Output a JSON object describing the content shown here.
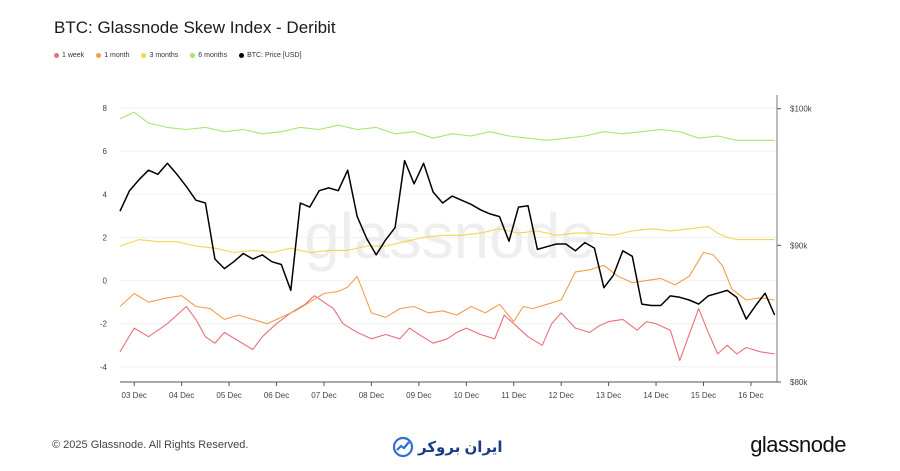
{
  "header": {
    "title": "BTC: Glassnode Skew Index - Deribit"
  },
  "legend": [
    {
      "label": "1 week",
      "color": "#e8707b"
    },
    {
      "label": "1 month",
      "color": "#ef9f4f"
    },
    {
      "label": "3 months",
      "color": "#f2d64d"
    },
    {
      "label": "6 months",
      "color": "#a7e66e"
    },
    {
      "label": "BTC: Price [USD]",
      "color": "#000000"
    }
  ],
  "footer": {
    "copyright": "© 2025 Glassnode. All Rights Reserved.",
    "partner_logo": "ایران بروکر",
    "brand": "glassnode"
  },
  "watermark": "glassnode",
  "chart_data": {
    "type": "line",
    "title": "BTC: Glassnode Skew Index - Deribit",
    "x_labels": [
      "03 Dec",
      "04 Dec",
      "05 Dec",
      "06 Dec",
      "07 Dec",
      "08 Dec",
      "09 Dec",
      "10 Dec",
      "11 Dec",
      "12 Dec",
      "13 Dec",
      "14 Dec",
      "15 Dec",
      "16 Dec"
    ],
    "x_range_days": [
      0,
      13.85
    ],
    "y_left": {
      "ticks": [
        "8",
        "6",
        "4",
        "2",
        "0",
        "-2",
        "-4"
      ],
      "ylim": [
        -4.7,
        8.6
      ]
    },
    "y_right": {
      "ticks": [
        "$100k",
        "$90k",
        "$80k"
      ],
      "ylim": [
        80000,
        101000
      ]
    },
    "series": [
      {
        "name": "1 week",
        "axis": "left",
        "color": "#e8707b",
        "x": [
          0,
          0.3,
          0.6,
          1.0,
          1.4,
          1.6,
          1.8,
          2.0,
          2.2,
          2.5,
          2.8,
          3.0,
          3.3,
          3.6,
          3.9,
          4.1,
          4.3,
          4.5,
          4.7,
          5.0,
          5.3,
          5.6,
          5.9,
          6.1,
          6.3,
          6.6,
          6.9,
          7.1,
          7.3,
          7.6,
          7.9,
          8.1,
          8.3,
          8.6,
          8.9,
          9.1,
          9.3,
          9.6,
          9.9,
          10.1,
          10.3,
          10.6,
          10.9,
          11.1,
          11.3,
          11.6,
          11.8,
          12.0,
          12.2,
          12.4,
          12.6,
          12.8,
          13.0,
          13.2,
          13.5,
          13.8
        ],
        "values": [
          -3.3,
          -2.2,
          -2.6,
          -2.0,
          -1.2,
          -1.8,
          -2.6,
          -2.9,
          -2.4,
          -2.8,
          -3.2,
          -2.6,
          -2.0,
          -1.5,
          -1.1,
          -0.7,
          -1.0,
          -1.3,
          -2.0,
          -2.4,
          -2.7,
          -2.5,
          -2.7,
          -2.2,
          -2.5,
          -2.9,
          -2.7,
          -2.4,
          -2.2,
          -2.5,
          -2.7,
          -1.6,
          -2.0,
          -2.6,
          -3.0,
          -2.0,
          -1.5,
          -2.2,
          -2.4,
          -2.1,
          -1.9,
          -1.8,
          -2.3,
          -1.9,
          -2.0,
          -2.3,
          -3.7,
          -2.5,
          -1.3,
          -2.4,
          -3.4,
          -3.0,
          -3.4,
          -3.1,
          -3.3,
          -3.4
        ]
      },
      {
        "name": "1 month",
        "axis": "left",
        "color": "#ef9f4f",
        "x": [
          0,
          0.3,
          0.6,
          1.0,
          1.3,
          1.6,
          1.9,
          2.2,
          2.5,
          2.8,
          3.1,
          3.4,
          3.7,
          4.0,
          4.3,
          4.6,
          4.8,
          5.0,
          5.3,
          5.6,
          5.9,
          6.2,
          6.5,
          6.8,
          7.1,
          7.4,
          7.7,
          8.0,
          8.3,
          8.5,
          8.7,
          9.0,
          9.3,
          9.6,
          9.9,
          10.2,
          10.5,
          10.8,
          11.1,
          11.4,
          11.7,
          12.0,
          12.3,
          12.5,
          12.7,
          12.9,
          13.2,
          13.5,
          13.8
        ],
        "values": [
          -1.2,
          -0.6,
          -1.0,
          -0.8,
          -0.7,
          -1.2,
          -1.3,
          -1.8,
          -1.6,
          -1.8,
          -2.0,
          -1.7,
          -1.4,
          -1.0,
          -0.6,
          -0.5,
          -0.3,
          0.2,
          -1.5,
          -1.7,
          -1.3,
          -1.2,
          -1.5,
          -1.4,
          -1.6,
          -1.2,
          -1.5,
          -1.1,
          -1.9,
          -1.2,
          -1.3,
          -1.1,
          -0.9,
          0.4,
          0.5,
          0.7,
          0.2,
          -0.1,
          0.0,
          0.1,
          -0.2,
          0.2,
          1.3,
          1.2,
          0.7,
          -0.4,
          -0.9,
          -0.8,
          -0.9
        ]
      },
      {
        "name": "3 months",
        "axis": "left",
        "color": "#f2d64d",
        "x": [
          0,
          0.4,
          0.8,
          1.2,
          1.6,
          2.0,
          2.4,
          2.8,
          3.2,
          3.6,
          4.0,
          4.4,
          4.8,
          5.2,
          5.6,
          6.0,
          6.4,
          6.8,
          7.2,
          7.6,
          8.0,
          8.4,
          8.8,
          9.2,
          9.6,
          10.0,
          10.4,
          10.8,
          11.2,
          11.6,
          12.0,
          12.4,
          12.6,
          12.8,
          13.0,
          13.4,
          13.8
        ],
        "values": [
          1.6,
          1.9,
          1.8,
          1.8,
          1.6,
          1.5,
          1.3,
          1.4,
          1.3,
          1.5,
          1.3,
          1.4,
          1.4,
          1.6,
          1.6,
          1.8,
          2.0,
          2.1,
          2.1,
          2.2,
          2.4,
          2.2,
          2.3,
          2.1,
          2.2,
          2.2,
          2.1,
          2.3,
          2.4,
          2.3,
          2.4,
          2.5,
          2.2,
          2.0,
          1.9,
          1.9,
          1.9
        ]
      },
      {
        "name": "6 months",
        "axis": "left",
        "color": "#a7e66e",
        "x": [
          0,
          0.3,
          0.6,
          1.0,
          1.4,
          1.8,
          2.2,
          2.6,
          3.0,
          3.4,
          3.8,
          4.2,
          4.6,
          5.0,
          5.4,
          5.8,
          6.2,
          6.6,
          7.0,
          7.4,
          7.8,
          8.2,
          8.6,
          9.0,
          9.4,
          9.8,
          10.2,
          10.6,
          11.0,
          11.4,
          11.8,
          12.2,
          12.6,
          13.0,
          13.4,
          13.8
        ],
        "values": [
          7.5,
          7.8,
          7.3,
          7.1,
          7.0,
          7.1,
          6.9,
          7.0,
          6.8,
          6.9,
          7.1,
          7.0,
          7.2,
          7.0,
          7.1,
          6.8,
          6.9,
          6.6,
          6.8,
          6.7,
          6.9,
          6.7,
          6.6,
          6.5,
          6.6,
          6.7,
          6.9,
          6.8,
          6.9,
          7.0,
          6.9,
          6.6,
          6.7,
          6.5,
          6.5,
          6.5
        ]
      },
      {
        "name": "BTC: Price [USD]",
        "axis": "right",
        "color": "#000000",
        "x": [
          0,
          0.2,
          0.4,
          0.6,
          0.8,
          1.0,
          1.2,
          1.4,
          1.6,
          1.8,
          2.0,
          2.2,
          2.4,
          2.6,
          2.8,
          3.0,
          3.2,
          3.4,
          3.6,
          3.8,
          4.0,
          4.2,
          4.4,
          4.6,
          4.8,
          5.0,
          5.2,
          5.4,
          5.6,
          5.8,
          6.0,
          6.2,
          6.4,
          6.6,
          6.8,
          7.0,
          7.2,
          7.4,
          7.6,
          7.8,
          8.0,
          8.2,
          8.4,
          8.6,
          8.8,
          9.0,
          9.2,
          9.4,
          9.6,
          9.8,
          10.0,
          10.2,
          10.4,
          10.6,
          10.8,
          11.0,
          11.2,
          11.4,
          11.6,
          11.8,
          12.0,
          12.2,
          12.4,
          12.6,
          12.8,
          13.0,
          13.2,
          13.4,
          13.6,
          13.8
        ],
        "values": [
          92500,
          94000,
          94800,
          95500,
          95200,
          96000,
          95200,
          94300,
          93300,
          93100,
          89000,
          88300,
          88800,
          89400,
          89000,
          89300,
          88800,
          88600,
          86700,
          93100,
          92800,
          94000,
          94200,
          94000,
          95500,
          92100,
          90500,
          89300,
          90400,
          91300,
          96200,
          94500,
          96000,
          93900,
          93100,
          93600,
          93300,
          93000,
          92600,
          92300,
          92100,
          90300,
          92800,
          92900,
          89700,
          89900,
          90100,
          90100,
          89600,
          90200,
          89800,
          86900,
          87800,
          89600,
          89200,
          85700,
          85600,
          85600,
          86300,
          86200,
          86000,
          85700,
          86300,
          86500,
          86700,
          86200,
          84600,
          85600,
          86500,
          84900
        ]
      }
    ]
  }
}
